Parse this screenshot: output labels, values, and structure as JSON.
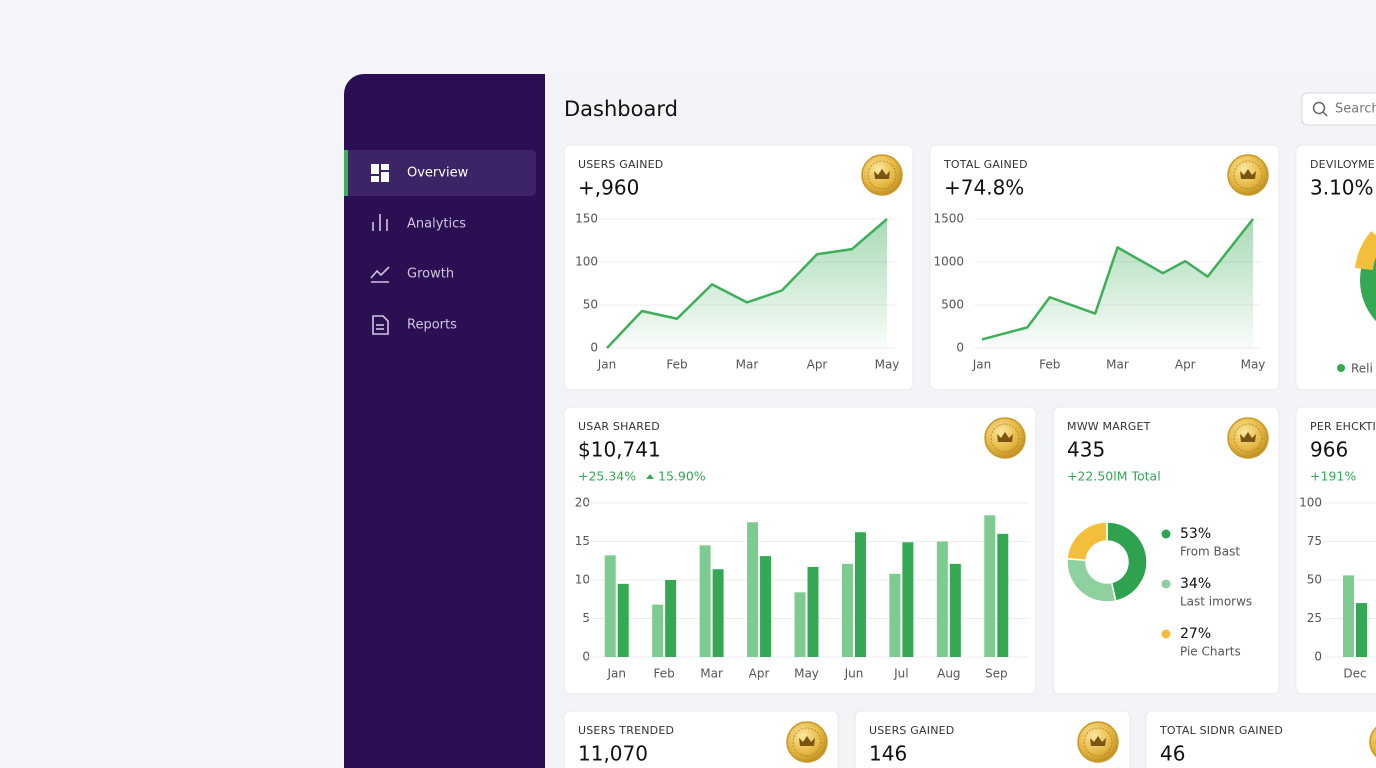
{
  "sidebar": {
    "nav": [
      "Overview",
      "Analytics",
      "Growth",
      "Reports"
    ]
  },
  "header": {
    "title": "Dashboard",
    "search": "Search"
  },
  "cards": [
    {
      "label": "USERS GAINED",
      "value": "+,960",
      "chart": {
        "type": "line",
        "color": "#3fae5a",
        "x": [
          0,
          0.5,
          1,
          1.5,
          2,
          2.5,
          3,
          3.5,
          4
        ],
        "values": [
          0,
          43,
          34,
          74,
          53,
          67,
          109,
          115,
          150
        ],
        "xticks": [
          {
            "value": 0,
            "label": "Jan"
          },
          {
            "value": 1,
            "label": "Feb"
          },
          {
            "value": 2,
            "label": "Mar"
          },
          {
            "value": 3,
            "label": "Apr"
          },
          {
            "value": 4,
            "label": "May"
          }
        ],
        "xlim": [
          0,
          4
        ],
        "ylim": [
          0,
          150
        ],
        "yticks": [
          0,
          50,
          100,
          150
        ],
        "grid": true
      }
    },
    {
      "label": "TOTAL GAINED",
      "value": "+74.8%",
      "chart": {
        "type": "line",
        "color": "#3fae5a",
        "x": [
          0,
          0.67,
          1,
          1.67,
          2,
          2.67,
          3,
          3.33,
          4
        ],
        "values": [
          100,
          240,
          590,
          400,
          1170,
          870,
          1010,
          830,
          1500
        ],
        "xticks": [
          {
            "value": 0,
            "label": "Jan"
          },
          {
            "value": 1,
            "label": "Feb"
          },
          {
            "value": 2,
            "label": "Mar"
          },
          {
            "value": 3,
            "label": "Apr"
          },
          {
            "value": 4,
            "label": "May"
          }
        ],
        "xlim": [
          0,
          4
        ],
        "ylim": [
          0,
          1500
        ],
        "yticks": [
          0,
          500,
          1000,
          1500
        ],
        "grid": true
      }
    },
    {
      "label": "DEVILOYMEN",
      "value": "3.10%",
      "legend": [
        "Reli"
      ]
    },
    {
      "label": "USAR SHARED",
      "value": "$10,741",
      "deltas": [
        "+25.34%",
        "15.90%"
      ],
      "chart": {
        "type": "bar",
        "categories": [
          "Jan",
          "Feb",
          "Mar",
          "Apr",
          "May",
          "Jun",
          "Jul",
          "Aug",
          "Sep"
        ],
        "series": [
          {
            "color": "#7dcb8f",
            "values": [
              13.2,
              6.8,
              14.5,
              17.5,
              8.4,
              12.1,
              10.8,
              15,
              18.4
            ]
          },
          {
            "color": "#34a853",
            "values": [
              9.5,
              10,
              11.4,
              13.1,
              11.7,
              16.2,
              14.9,
              12.1,
              16
            ]
          }
        ],
        "ylim": [
          0,
          20
        ],
        "yticks": [
          0,
          5,
          10,
          15,
          20
        ],
        "grid": true
      }
    },
    {
      "label": "MWW MARGET",
      "value": "435",
      "deltas": [
        "+22.50lM Total"
      ],
      "chart": {
        "type": "pie",
        "donut": true,
        "values": [
          53,
          34,
          27
        ],
        "value_labels": [
          "53%",
          "34%",
          "27%"
        ],
        "categories": [
          "From Bast",
          "Last imorws",
          "Pie Charts"
        ],
        "colors": [
          "#2fa24f",
          "#8fd19e",
          "#f3bf3a"
        ]
      }
    },
    {
      "label": "PER EHCKTIR",
      "value": "966",
      "deltas": [
        "+191%"
      ],
      "chart": {
        "type": "bar",
        "categories": [
          "Dec"
        ],
        "series": [
          {
            "color": "#7dcb8f",
            "values": [
              53
            ]
          },
          {
            "color": "#34a853",
            "values": [
              35
            ]
          }
        ],
        "ylim": [
          0,
          100
        ],
        "yticks": [
          0,
          25,
          50,
          75,
          100
        ],
        "grid": true
      }
    },
    {
      "label": "USERS TRENDED",
      "value": "11,070"
    },
    {
      "label": "USERS GAINED",
      "value": "146"
    },
    {
      "label": "TOTAL SIDNR GAINED",
      "value": "46"
    }
  ]
}
